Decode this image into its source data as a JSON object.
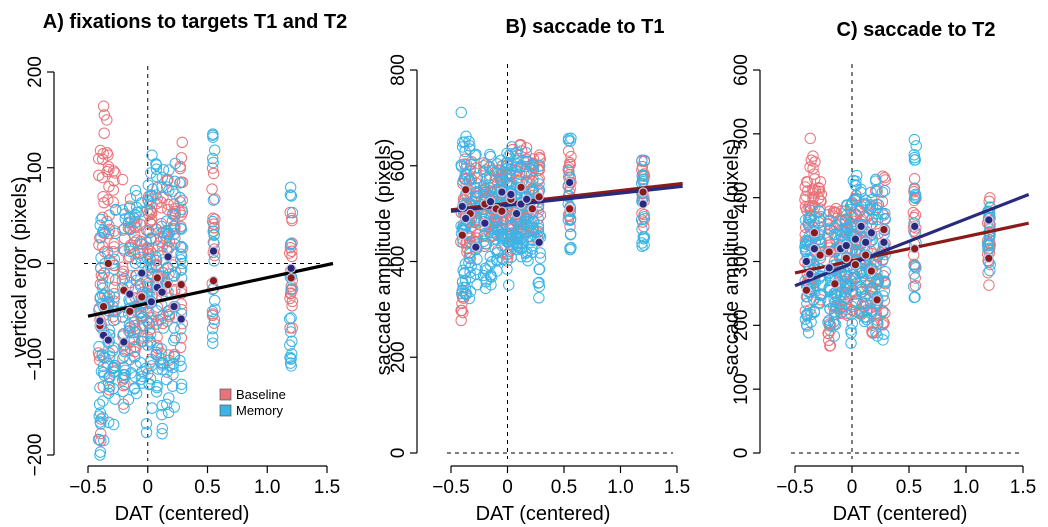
{
  "colors": {
    "baseline": "#e8737a",
    "memory": "#3bb4e6",
    "baseline_mean": "#8b1a1a",
    "memory_mean": "#2a2a7c",
    "fit_black": "#000000",
    "fit_baseline": "#8b1a1a",
    "fit_memory": "#2a2a7c"
  },
  "chart_data": [
    {
      "id": "A",
      "type": "scatter",
      "title": "A) fixations to targets T1 and T2",
      "xlabel": "DAT (centered)",
      "ylabel": "vertical error (pixels)",
      "xlim": [
        -0.5,
        1.5
      ],
      "ylim": [
        -200,
        200
      ],
      "xticks": [
        -0.5,
        0,
        0.5,
        1,
        1.5
      ],
      "xtick_labels": [
        "−0.5",
        "0",
        "0.5",
        "1.0",
        "1.5"
      ],
      "yticks": [
        -200,
        -100,
        0,
        100,
        200
      ],
      "ytick_labels": [
        "−200",
        "−100",
        "0",
        "100",
        "200"
      ],
      "hline": 0,
      "hline_dashed": true,
      "vline": 0,
      "legend": {
        "position": "bottom-right",
        "entries": [
          {
            "label": "Baseline",
            "key": "baseline"
          },
          {
            "label": "Memory",
            "key": "memory"
          }
        ]
      },
      "subject_x": [
        -0.4,
        -0.37,
        -0.33,
        -0.28,
        -0.2,
        -0.15,
        -0.1,
        -0.05,
        0,
        0.03,
        0.08,
        0.12,
        0.17,
        0.22,
        0.28,
        0.55,
        1.2
      ],
      "series": [
        {
          "name": "Baseline",
          "color_key": "baseline",
          "kind": "subject_points",
          "ranges": [
            [
              -190,
              120
            ],
            [
              -170,
              180
            ],
            [
              -160,
              150
            ],
            [
              -140,
              100
            ],
            [
              -150,
              90
            ],
            [
              -130,
              70
            ],
            [
              -120,
              60
            ],
            [
              -110,
              50
            ],
            [
              -120,
              80
            ],
            [
              -100,
              60
            ],
            [
              -140,
              80
            ],
            [
              -110,
              70
            ],
            [
              -120,
              90
            ],
            [
              -100,
              80
            ],
            [
              -90,
              130
            ],
            [
              -80,
              110
            ],
            [
              -80,
              60
            ]
          ]
        },
        {
          "name": "Memory",
          "color_key": "memory",
          "kind": "subject_points",
          "ranges": [
            [
              -200,
              70
            ],
            [
              -190,
              60
            ],
            [
              -180,
              50
            ],
            [
              -170,
              60
            ],
            [
              -160,
              60
            ],
            [
              -150,
              70
            ],
            [
              -140,
              80
            ],
            [
              -130,
              70
            ],
            [
              -180,
              120
            ],
            [
              -170,
              130
            ],
            [
              -150,
              110
            ],
            [
              -190,
              100
            ],
            [
              -170,
              100
            ],
            [
              -160,
              120
            ],
            [
              -200,
              120
            ],
            [
              -90,
              140
            ],
            [
              -130,
              100
            ]
          ]
        },
        {
          "name": "",
          "color_key": "baseline_mean",
          "kind": "means",
          "points": [
            [
              -0.4,
              -65
            ],
            [
              -0.37,
              -45
            ],
            [
              -0.33,
              0
            ],
            [
              -0.2,
              -28
            ],
            [
              -0.15,
              -50
            ],
            [
              -0.05,
              -35
            ],
            [
              0.08,
              -15
            ],
            [
              0.12,
              -30
            ],
            [
              0.17,
              -22
            ],
            [
              0.28,
              -22
            ],
            [
              0.55,
              -18
            ],
            [
              1.2,
              -15
            ]
          ]
        },
        {
          "name": "",
          "color_key": "memory_mean",
          "kind": "means",
          "points": [
            [
              -0.4,
              -60
            ],
            [
              -0.37,
              -75
            ],
            [
              -0.33,
              -80
            ],
            [
              -0.2,
              -82
            ],
            [
              -0.15,
              -32
            ],
            [
              -0.05,
              -10
            ],
            [
              0.03,
              -40
            ],
            [
              0.08,
              -25
            ],
            [
              0.12,
              -30
            ],
            [
              0.17,
              7
            ],
            [
              0.22,
              -45
            ],
            [
              0.28,
              -58
            ],
            [
              0.55,
              13
            ],
            [
              1.2,
              -5
            ]
          ]
        },
        {
          "name": "",
          "color_key": "fit_black",
          "kind": "fit_line",
          "x": [
            -0.5,
            1.55
          ],
          "y": [
            -55,
            0
          ]
        }
      ]
    },
    {
      "id": "B",
      "type": "scatter",
      "title": "B) saccade to T1",
      "xlabel": "DAT (centered)",
      "ylabel": "saccade amplitude (pixels)",
      "xlim": [
        -0.5,
        1.5
      ],
      "ylim": [
        0,
        800
      ],
      "xticks": [
        -0.5,
        0,
        0.5,
        1,
        1.5
      ],
      "xtick_labels": [
        "−0.5",
        "0",
        "0.5",
        "1.0",
        "1.5"
      ],
      "yticks": [
        0,
        200,
        400,
        600,
        800
      ],
      "ytick_labels": [
        "0",
        "200",
        "400",
        "600",
        "800"
      ],
      "hline": 0,
      "hline_dashed": true,
      "vline": 0,
      "subject_x": [
        -0.4,
        -0.37,
        -0.33,
        -0.28,
        -0.2,
        -0.15,
        -0.1,
        -0.05,
        0,
        0.03,
        0.08,
        0.12,
        0.17,
        0.22,
        0.28,
        0.55,
        1.2
      ],
      "series": [
        {
          "name": "Baseline",
          "color_key": "baseline",
          "kind": "subject_points",
          "ranges": [
            [
              275,
              600
            ],
            [
              380,
              620
            ],
            [
              400,
              610
            ],
            [
              410,
              600
            ],
            [
              430,
              620
            ],
            [
              430,
              600
            ],
            [
              420,
              590
            ],
            [
              440,
              610
            ],
            [
              400,
              620
            ],
            [
              420,
              640
            ],
            [
              430,
              630
            ],
            [
              440,
              690
            ],
            [
              440,
              650
            ],
            [
              450,
              620
            ],
            [
              420,
              630
            ],
            [
              460,
              650
            ],
            [
              470,
              610
            ]
          ]
        },
        {
          "name": "Memory",
          "color_key": "memory",
          "kind": "subject_points",
          "ranges": [
            [
              330,
              720
            ],
            [
              300,
              690
            ],
            [
              320,
              660
            ],
            [
              350,
              640
            ],
            [
              340,
              640
            ],
            [
              340,
              630
            ],
            [
              380,
              620
            ],
            [
              400,
              620
            ],
            [
              350,
              640
            ],
            [
              400,
              640
            ],
            [
              420,
              640
            ],
            [
              410,
              630
            ],
            [
              400,
              630
            ],
            [
              410,
              620
            ],
            [
              310,
              630
            ],
            [
              420,
              670
            ],
            [
              430,
              630
            ]
          ]
        },
        {
          "name": "",
          "color_key": "baseline_mean",
          "kind": "means",
          "points": [
            [
              -0.4,
              455
            ],
            [
              -0.37,
              550
            ],
            [
              -0.33,
              500
            ],
            [
              -0.2,
              520
            ],
            [
              -0.1,
              510
            ],
            [
              -0.05,
              505
            ],
            [
              0.03,
              530
            ],
            [
              0.12,
              555
            ],
            [
              0.22,
              510
            ],
            [
              0.28,
              535
            ],
            [
              0.55,
              510
            ],
            [
              1.2,
              545
            ]
          ]
        },
        {
          "name": "",
          "color_key": "memory_mean",
          "kind": "means",
          "points": [
            [
              -0.4,
              515
            ],
            [
              -0.37,
              490
            ],
            [
              -0.28,
              430
            ],
            [
              -0.2,
              480
            ],
            [
              -0.15,
              525
            ],
            [
              -0.05,
              545
            ],
            [
              0.03,
              540
            ],
            [
              0.08,
              500
            ],
            [
              0.12,
              520
            ],
            [
              0.17,
              530
            ],
            [
              0.28,
              440
            ],
            [
              0.55,
              565
            ],
            [
              1.2,
              520
            ]
          ]
        },
        {
          "name": "",
          "color_key": "fit_baseline",
          "kind": "fit_line",
          "x": [
            -0.5,
            1.55
          ],
          "y": [
            508,
            563
          ]
        },
        {
          "name": "",
          "color_key": "fit_memory",
          "kind": "fit_line",
          "x": [
            -0.5,
            1.55
          ],
          "y": [
            505,
            557
          ]
        }
      ]
    },
    {
      "id": "C",
      "type": "scatter",
      "title": "C) saccade to T2",
      "xlabel": "DAT (centered)",
      "ylabel": "saccade amplitude (pixels)",
      "xlim": [
        -0.5,
        1.5
      ],
      "ylim": [
        0,
        600
      ],
      "xticks": [
        -0.5,
        0,
        0.5,
        1,
        1.5
      ],
      "xtick_labels": [
        "−0.5",
        "0",
        "0.5",
        "1.0",
        "1.5"
      ],
      "yticks": [
        0,
        100,
        200,
        300,
        400,
        500,
        600
      ],
      "ytick_labels": [
        "0",
        "100",
        "200",
        "300",
        "400",
        "500",
        "600"
      ],
      "hline": 0,
      "hline_dashed": true,
      "vline": 0,
      "subject_x": [
        -0.4,
        -0.37,
        -0.33,
        -0.28,
        -0.2,
        -0.15,
        -0.1,
        -0.05,
        0,
        0.03,
        0.08,
        0.12,
        0.17,
        0.22,
        0.28,
        0.55,
        1.2
      ],
      "series": [
        {
          "name": "Baseline",
          "color_key": "baseline",
          "kind": "subject_points",
          "ranges": [
            [
              200,
              430
            ],
            [
              210,
              500
            ],
            [
              220,
              480
            ],
            [
              220,
              440
            ],
            [
              160,
              420
            ],
            [
              200,
              400
            ],
            [
              210,
              380
            ],
            [
              200,
              390
            ],
            [
              220,
              400
            ],
            [
              230,
              410
            ],
            [
              210,
              380
            ],
            [
              210,
              390
            ],
            [
              170,
              380
            ],
            [
              180,
              420
            ],
            [
              200,
              450
            ],
            [
              260,
              430
            ],
            [
              260,
              400
            ]
          ]
        },
        {
          "name": "Memory",
          "color_key": "memory",
          "kind": "subject_points",
          "ranges": [
            [
              190,
              390
            ],
            [
              180,
              380
            ],
            [
              200,
              380
            ],
            [
              220,
              400
            ],
            [
              200,
              370
            ],
            [
              180,
              360
            ],
            [
              220,
              380
            ],
            [
              230,
              400
            ],
            [
              170,
              430
            ],
            [
              190,
              440
            ],
            [
              220,
              420
            ],
            [
              200,
              400
            ],
            [
              220,
              410
            ],
            [
              180,
              440
            ],
            [
              170,
              430
            ],
            [
              240,
              500
            ],
            [
              280,
              420
            ]
          ]
        },
        {
          "name": "",
          "color_key": "baseline_mean",
          "kind": "means",
          "points": [
            [
              -0.4,
              255
            ],
            [
              -0.33,
              345
            ],
            [
              -0.28,
              310
            ],
            [
              -0.2,
              315
            ],
            [
              -0.15,
              265
            ],
            [
              -0.05,
              305
            ],
            [
              0.03,
              295
            ],
            [
              0.12,
              310
            ],
            [
              0.17,
              285
            ],
            [
              0.22,
              240
            ],
            [
              0.28,
              350
            ],
            [
              0.55,
              320
            ],
            [
              1.2,
              305
            ]
          ]
        },
        {
          "name": "",
          "color_key": "memory_mean",
          "kind": "means",
          "points": [
            [
              -0.4,
              300
            ],
            [
              -0.37,
              280
            ],
            [
              -0.33,
              320
            ],
            [
              -0.2,
              290
            ],
            [
              -0.1,
              320
            ],
            [
              -0.05,
              325
            ],
            [
              0.03,
              335
            ],
            [
              0.08,
              355
            ],
            [
              0.12,
              330
            ],
            [
              0.17,
              345
            ],
            [
              0.28,
              330
            ],
            [
              0.55,
              355
            ],
            [
              1.2,
              365
            ]
          ]
        },
        {
          "name": "",
          "color_key": "fit_baseline",
          "kind": "fit_line",
          "x": [
            -0.5,
            1.55
          ],
          "y": [
            282,
            360
          ]
        },
        {
          "name": "",
          "color_key": "fit_memory",
          "kind": "fit_line",
          "x": [
            -0.5,
            1.55
          ],
          "y": [
            262,
            405
          ]
        }
      ]
    }
  ]
}
